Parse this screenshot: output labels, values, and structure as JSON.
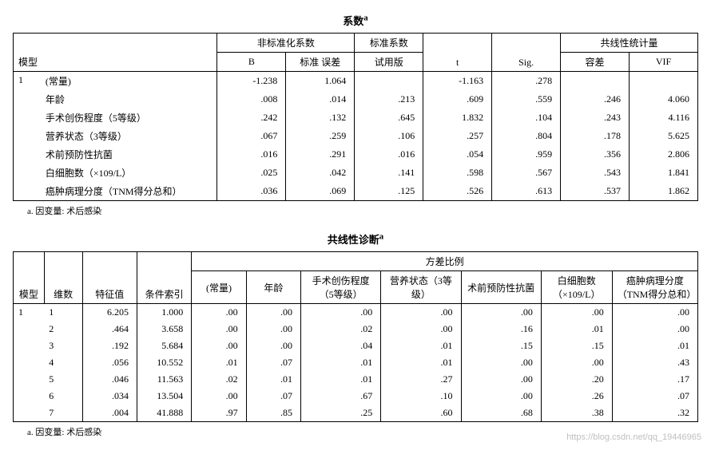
{
  "style": {
    "font_family": "SimSun",
    "base_fontsize": 12,
    "title_fontsize": 13,
    "footnote_fontsize": 11,
    "text_color": "#000000",
    "background_color": "#ffffff",
    "border_color": "#000000",
    "watermark_color": "#bfbfbf"
  },
  "table1": {
    "title": "系数",
    "title_sup": "a",
    "head_group_nonstd": "非标准化系数",
    "head_group_std": "标准系数",
    "head_group_collin": "共线性统计量",
    "head_model": "模型",
    "head_B": "B",
    "head_SE": "标准 误差",
    "head_beta": "试用版",
    "head_t": "t",
    "head_sig": "Sig.",
    "head_tol": "容差",
    "head_vif": "VIF",
    "model_no": "1",
    "rows": [
      {
        "label": "(常量)",
        "B": "-1.238",
        "SE": "1.064",
        "beta": "",
        "t": "-1.163",
        "sig": ".278",
        "tol": "",
        "vif": ""
      },
      {
        "label": "年龄",
        "B": ".008",
        "SE": ".014",
        "beta": ".213",
        "t": ".609",
        "sig": ".559",
        "tol": ".246",
        "vif": "4.060"
      },
      {
        "label": "手术创伤程度（5等级）",
        "B": ".242",
        "SE": ".132",
        "beta": ".645",
        "t": "1.832",
        "sig": ".104",
        "tol": ".243",
        "vif": "4.116"
      },
      {
        "label": "营养状态（3等级）",
        "B": ".067",
        "SE": ".259",
        "beta": ".106",
        "t": ".257",
        "sig": ".804",
        "tol": ".178",
        "vif": "5.625"
      },
      {
        "label": "术前预防性抗菌",
        "B": ".016",
        "SE": ".291",
        "beta": ".016",
        "t": ".054",
        "sig": ".959",
        "tol": ".356",
        "vif": "2.806"
      },
      {
        "label": "白细胞数（×109/L）",
        "B": ".025",
        "SE": ".042",
        "beta": ".141",
        "t": ".598",
        "sig": ".567",
        "tol": ".543",
        "vif": "1.841"
      },
      {
        "label": "癌肿病理分度（TNM得分总和）",
        "B": ".036",
        "SE": ".069",
        "beta": ".125",
        "t": ".526",
        "sig": ".613",
        "tol": ".537",
        "vif": "1.862"
      }
    ],
    "footnote": "a. 因变量: 术后感染"
  },
  "table2": {
    "title": "共线性诊断",
    "title_sup": "a",
    "head_model": "模型",
    "head_dim": "维数",
    "head_eigen": "特征值",
    "head_cond": "条件索引",
    "head_varprop": "方差比例",
    "head_const": "(常量)",
    "head_age": "年龄",
    "head_surg": "手术创伤程度（5等级）",
    "head_nutr": "营养状态（3等级）",
    "head_anti": "术前预防性抗菌",
    "head_wbc": "白细胞数（×109/L）",
    "head_tnm": "癌肿病理分度（TNM得分总和）",
    "model_no": "1",
    "rows": [
      {
        "dim": "1",
        "eigen": "6.205",
        "cond": "1.000",
        "c": ".00",
        "age": ".00",
        "surg": ".00",
        "nutr": ".00",
        "anti": ".00",
        "wbc": ".00",
        "tnm": ".00"
      },
      {
        "dim": "2",
        "eigen": ".464",
        "cond": "3.658",
        "c": ".00",
        "age": ".00",
        "surg": ".02",
        "nutr": ".00",
        "anti": ".16",
        "wbc": ".01",
        "tnm": ".00"
      },
      {
        "dim": "3",
        "eigen": ".192",
        "cond": "5.684",
        "c": ".00",
        "age": ".00",
        "surg": ".04",
        "nutr": ".01",
        "anti": ".15",
        "wbc": ".15",
        "tnm": ".01"
      },
      {
        "dim": "4",
        "eigen": ".056",
        "cond": "10.552",
        "c": ".01",
        "age": ".07",
        "surg": ".01",
        "nutr": ".01",
        "anti": ".00",
        "wbc": ".00",
        "tnm": ".43"
      },
      {
        "dim": "5",
        "eigen": ".046",
        "cond": "11.563",
        "c": ".02",
        "age": ".01",
        "surg": ".01",
        "nutr": ".27",
        "anti": ".00",
        "wbc": ".20",
        "tnm": ".17"
      },
      {
        "dim": "6",
        "eigen": ".034",
        "cond": "13.504",
        "c": ".00",
        "age": ".07",
        "surg": ".67",
        "nutr": ".10",
        "anti": ".00",
        "wbc": ".26",
        "tnm": ".07"
      },
      {
        "dim": "7",
        "eigen": ".004",
        "cond": "41.888",
        "c": ".97",
        "age": ".85",
        "surg": ".25",
        "nutr": ".60",
        "anti": ".68",
        "wbc": ".38",
        "tnm": ".32"
      }
    ],
    "footnote": "a. 因变量: 术后感染"
  },
  "watermark": "https://blog.csdn.net/qq_19446965"
}
